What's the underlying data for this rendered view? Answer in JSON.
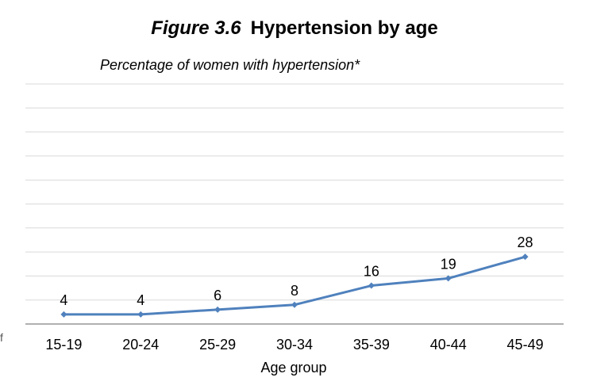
{
  "header": {
    "figure_label": "Figure 3.6",
    "title": "Hypertension by age",
    "subtitle": "Percentage of women with hypertension*"
  },
  "edge_marks": [
    "f"
  ],
  "chart_data": {
    "type": "line",
    "title": "Hypertension by age",
    "subtitle": "Percentage of women with hypertension*",
    "xlabel": "Age group",
    "ylabel": "",
    "categories": [
      "15-19",
      "20-24",
      "25-29",
      "30-34",
      "35-39",
      "40-44",
      "45-49"
    ],
    "series": [
      {
        "values": [
          4,
          4,
          6,
          8,
          16,
          19,
          28
        ],
        "color": "#4f81bd"
      }
    ],
    "ylim": [
      0,
      100
    ],
    "grid": true,
    "data_labels": true,
    "legend": "none"
  }
}
